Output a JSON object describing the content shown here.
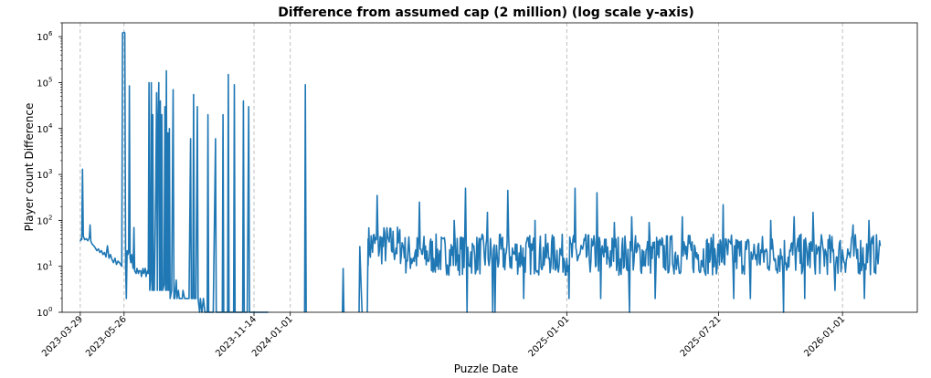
{
  "chart_data": {
    "type": "line",
    "title": "Difference from assumed cap (2 million) (log scale y-axis)",
    "xlabel": "Puzzle Date",
    "ylabel": "Player count Difference",
    "yscale": "log",
    "ylim": [
      1,
      2000000
    ],
    "xlim": [
      "2023-03-05",
      "2026-04-10"
    ],
    "grid": "x-only, dashed",
    "line_color": "#1f77b4",
    "x_ticks": [
      {
        "date": "2023-03-29",
        "label": "2023-03-29"
      },
      {
        "date": "2023-05-26",
        "label": "2023-05-26"
      },
      {
        "date": "2023-11-14",
        "label": "2023-11-14"
      },
      {
        "date": "2024-01-01",
        "label": "2024-01-01"
      },
      {
        "date": "2025-01-01",
        "label": "2025-01-01"
      },
      {
        "date": "2025-07-21",
        "label": "2025-07-21"
      },
      {
        "date": "2026-01-01",
        "label": "2026-01-01"
      }
    ],
    "y_ticks": [
      {
        "value": 1,
        "base": "10",
        "exp": "0"
      },
      {
        "value": 10,
        "base": "10",
        "exp": "1"
      },
      {
        "value": 100,
        "base": "10",
        "exp": "2"
      },
      {
        "value": 1000,
        "base": "10",
        "exp": "3"
      },
      {
        "value": 10000,
        "base": "10",
        "exp": "4"
      },
      {
        "value": 100000,
        "base": "10",
        "exp": "5"
      },
      {
        "value": 1000000,
        "base": "10",
        "exp": "6"
      }
    ],
    "series": [
      {
        "points": [
          [
            "2023-03-29",
            35
          ],
          [
            "2023-03-30",
            40
          ],
          [
            "2023-03-31",
            38
          ],
          [
            "2023-04-01",
            1300
          ],
          [
            "2023-04-02",
            45
          ],
          [
            "2023-04-04",
            38
          ],
          [
            "2023-04-06",
            40
          ],
          [
            "2023-04-08",
            36
          ],
          [
            "2023-04-10",
            42
          ],
          [
            "2023-04-11",
            80
          ],
          [
            "2023-04-12",
            35
          ],
          [
            "2023-04-14",
            30
          ],
          [
            "2023-04-16",
            28
          ],
          [
            "2023-04-18",
            25
          ],
          [
            "2023-04-20",
            22
          ],
          [
            "2023-04-22",
            24
          ],
          [
            "2023-04-24",
            20
          ],
          [
            "2023-04-26",
            22
          ],
          [
            "2023-04-28",
            18
          ],
          [
            "2023-04-30",
            20
          ],
          [
            "2023-05-02",
            16
          ],
          [
            "2023-05-04",
            28
          ],
          [
            "2023-05-06",
            15
          ],
          [
            "2023-05-08",
            18
          ],
          [
            "2023-05-10",
            14
          ],
          [
            "2023-05-12",
            12
          ],
          [
            "2023-05-14",
            15
          ],
          [
            "2023-05-16",
            11
          ],
          [
            "2023-05-18",
            13
          ],
          [
            "2023-05-20",
            12
          ],
          [
            "2023-05-23",
            10
          ],
          [
            "2023-05-24",
            1200000
          ],
          [
            "2023-05-26",
            1250000
          ],
          [
            "2023-05-27",
            1200000
          ],
          [
            "2023-05-28",
            10
          ],
          [
            "2023-05-29",
            2
          ],
          [
            "2023-05-30",
            22
          ],
          [
            "2023-05-31",
            18
          ],
          [
            "2023-06-01",
            20
          ],
          [
            "2023-06-02",
            85000
          ],
          [
            "2023-06-03",
            15
          ],
          [
            "2023-06-04",
            12
          ],
          [
            "2023-06-05",
            18
          ],
          [
            "2023-06-07",
            9
          ],
          [
            "2023-06-08",
            70
          ],
          [
            "2023-06-09",
            8
          ],
          [
            "2023-06-11",
            7
          ],
          [
            "2023-06-12",
            9
          ],
          [
            "2023-06-14",
            7
          ],
          [
            "2023-06-15",
            8
          ],
          [
            "2023-06-17",
            8
          ],
          [
            "2023-06-18",
            6
          ],
          [
            "2023-06-20",
            9
          ],
          [
            "2023-06-21",
            7
          ],
          [
            "2023-06-23",
            9
          ],
          [
            "2023-06-24",
            6
          ],
          [
            "2023-06-26",
            8
          ],
          [
            "2023-06-27",
            7
          ],
          [
            "2023-06-28",
            100000
          ],
          [
            "2023-06-29",
            3
          ],
          [
            "2023-06-30",
            5
          ],
          [
            "2023-07-01",
            100000
          ],
          [
            "2023-07-02",
            3
          ],
          [
            "2023-07-03",
            20000
          ],
          [
            "2023-07-04",
            3
          ],
          [
            "2023-07-05",
            3
          ],
          [
            "2023-07-07",
            500
          ],
          [
            "2023-07-08",
            60000
          ],
          [
            "2023-07-09",
            3
          ],
          [
            "2023-07-10",
            15000
          ],
          [
            "2023-07-11",
            100000
          ],
          [
            "2023-07-12",
            3
          ],
          [
            "2023-07-13",
            40000
          ],
          [
            "2023-07-14",
            3
          ],
          [
            "2023-07-15",
            20000
          ],
          [
            "2023-07-16",
            3
          ],
          [
            "2023-07-18",
            4
          ],
          [
            "2023-07-19",
            30000
          ],
          [
            "2023-07-20",
            3
          ],
          [
            "2023-07-21",
            180000
          ],
          [
            "2023-07-22",
            3
          ],
          [
            "2023-07-23",
            8000
          ],
          [
            "2023-07-24",
            3
          ],
          [
            "2023-07-25",
            10000
          ],
          [
            "2023-07-26",
            2
          ],
          [
            "2023-07-28",
            3
          ],
          [
            "2023-07-30",
            70000
          ],
          [
            "2023-07-31",
            2
          ],
          [
            "2023-08-01",
            2
          ],
          [
            "2023-08-03",
            5
          ],
          [
            "2023-08-04",
            2
          ],
          [
            "2023-08-06",
            3
          ],
          [
            "2023-08-07",
            2
          ],
          [
            "2023-08-09",
            2
          ],
          [
            "2023-08-11",
            2
          ],
          [
            "2023-08-12",
            3
          ],
          [
            "2023-08-14",
            2
          ],
          [
            "2023-08-16",
            2
          ],
          [
            "2023-08-18",
            2
          ],
          [
            "2023-08-20",
            2
          ],
          [
            "2023-08-22",
            6000
          ],
          [
            "2023-08-23",
            2
          ],
          [
            "2023-08-25",
            2
          ],
          [
            "2023-08-26",
            55000
          ],
          [
            "2023-08-27",
            2
          ],
          [
            "2023-08-29",
            2
          ],
          [
            "2023-08-31",
            30000
          ],
          [
            "2023-09-01",
            2
          ],
          [
            "2023-09-03",
            1
          ],
          [
            "2023-09-04",
            2
          ],
          [
            "2023-09-06",
            1
          ],
          [
            "2023-09-08",
            2
          ],
          [
            "2023-09-10",
            1
          ],
          [
            "2023-09-13",
            1
          ],
          [
            "2023-09-14",
            20000
          ],
          [
            "2023-09-15",
            1
          ],
          [
            "2023-09-17",
            1
          ],
          [
            "2023-09-19",
            1
          ],
          [
            "2023-09-21",
            1
          ],
          [
            "2023-09-24",
            6000
          ],
          [
            "2023-09-25",
            1
          ],
          [
            "2023-09-28",
            1
          ],
          [
            "2023-10-03",
            1
          ],
          [
            "2023-10-04",
            20000
          ],
          [
            "2023-10-05",
            1
          ],
          [
            "2023-10-10",
            1
          ],
          [
            "2023-10-11",
            150000
          ],
          [
            "2023-10-12",
            1
          ],
          [
            "2023-10-15",
            1
          ],
          [
            "2023-10-18",
            1
          ],
          [
            "2023-10-19",
            90000
          ],
          [
            "2023-10-20",
            1
          ],
          [
            "2023-10-25",
            1
          ],
          [
            "2023-10-30",
            1
          ],
          [
            "2023-10-31",
            40000
          ],
          [
            "2023-11-01",
            1
          ],
          [
            "2023-11-05",
            1
          ],
          [
            "2023-11-07",
            30000
          ],
          [
            "2023-11-08",
            1
          ],
          [
            "2023-11-14",
            1
          ],
          [
            "2023-11-20",
            1
          ],
          [
            "2023-11-27",
            1
          ],
          [
            "2023-11-28",
            1
          ],
          [
            "2023-12-03",
            1
          ]
        ],
        "segments": [
          [
            [
              "2024-01-20",
              1
            ],
            [
              "2024-01-21",
              90000
            ],
            [
              "2024-01-22",
              1
            ]
          ],
          [
            [
              "2024-03-10",
              1
            ],
            [
              "2024-03-11",
              9
            ],
            [
              "2024-03-12",
              1
            ]
          ],
          [
            [
              "2024-04-01",
              1
            ],
            [
              "2024-04-02",
              27
            ],
            [
              "2024-04-04",
              3
            ],
            [
              "2024-04-05",
              1
            ]
          ],
          [
            [
              "2024-04-12",
              1
            ],
            [
              "2024-04-13",
              40
            ]
          ]
        ],
        "noise_region": {
          "start": "2024-04-13",
          "end": "2026-02-20",
          "baseline": 18,
          "spikes": [
            [
              "2024-04-25",
              350
            ],
            [
              "2024-06-20",
              250
            ],
            [
              "2024-08-05",
              100
            ],
            [
              "2024-08-20",
              500
            ],
            [
              "2024-09-18",
              150
            ],
            [
              "2024-10-15",
              450
            ],
            [
              "2024-11-20",
              100
            ],
            [
              "2025-01-12",
              500
            ],
            [
              "2025-02-10",
              400
            ],
            [
              "2025-03-05",
              90
            ],
            [
              "2025-03-28",
              120
            ],
            [
              "2025-04-20",
              90
            ],
            [
              "2025-06-03",
              120
            ],
            [
              "2025-07-27",
              220
            ],
            [
              "2025-09-28",
              100
            ],
            [
              "2025-10-29",
              120
            ],
            [
              "2025-11-23",
              150
            ],
            [
              "2026-01-15",
              80
            ],
            [
              "2026-02-05",
              100
            ]
          ],
          "dips": [
            [
              "2024-08-22",
              1
            ],
            [
              "2024-09-25",
              1
            ],
            [
              "2024-09-28",
              1
            ],
            [
              "2024-11-05",
              2
            ],
            [
              "2025-01-04",
              2
            ],
            [
              "2025-02-15",
              2
            ],
            [
              "2025-03-25",
              1
            ],
            [
              "2025-04-28",
              2
            ],
            [
              "2025-08-10",
              2
            ],
            [
              "2025-09-01",
              2
            ],
            [
              "2025-10-15",
              1
            ],
            [
              "2025-11-12",
              2
            ],
            [
              "2025-12-22",
              3
            ],
            [
              "2026-01-30",
              2
            ]
          ]
        }
      }
    ]
  }
}
